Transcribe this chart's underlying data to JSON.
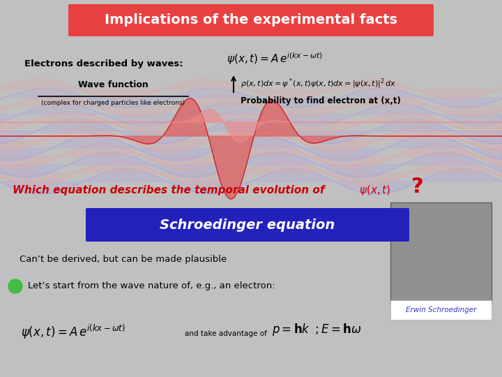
{
  "bg_color": "#c0c0c0",
  "title_text": "Implications of the experimental facts",
  "title_bg": "#e84040",
  "title_fg": "#ffffff",
  "electrons_text": "Electrons described by waves:",
  "wave_eq": "$\\psi(x,t) = A\\,e^{i(kx-\\omega t)}$",
  "wavefunction_label": "Wave function",
  "wavefunction_sub": "(complex for charged particles like electrons)",
  "prob_eq": "$\\rho(x,t)dx = \\psi^*(x,t)\\psi(x,t)dx = |\\psi(x,t)|^2\\,dx$",
  "prob_label": "Probability to find electron at (x,t)",
  "which_eq_text": "Which equation describes the temporal evolution of",
  "psi_xt": "$\\psi(x,t)$",
  "question_mark": "?",
  "schro_text": "Schroedinger equation",
  "schro_bg": "#2222bb",
  "schro_fg": "#ffffff",
  "cant_derive": "Can’t be derived, but can be made plausible",
  "lets_start": "Let’s start from the wave nature of, e.g., an electron:",
  "psi_eq2": "$\\psi(x,t) = A\\,e^{i(kx-\\omega t)}$",
  "and_take": "and take advantage of",
  "momentum_eq": "$p = \\mathbf{h}k\\;\\;; E = \\mathbf{h}\\omega$",
  "erwin_label": "Erwin Schroedinger",
  "erwin_label_color": "#3333cc",
  "red_color": "#cc0000",
  "green_dot_color": "#44bb44",
  "wave_blue": "#8888cc",
  "wave_pink": "#cc8888",
  "wave_pink2": "#dd9999"
}
